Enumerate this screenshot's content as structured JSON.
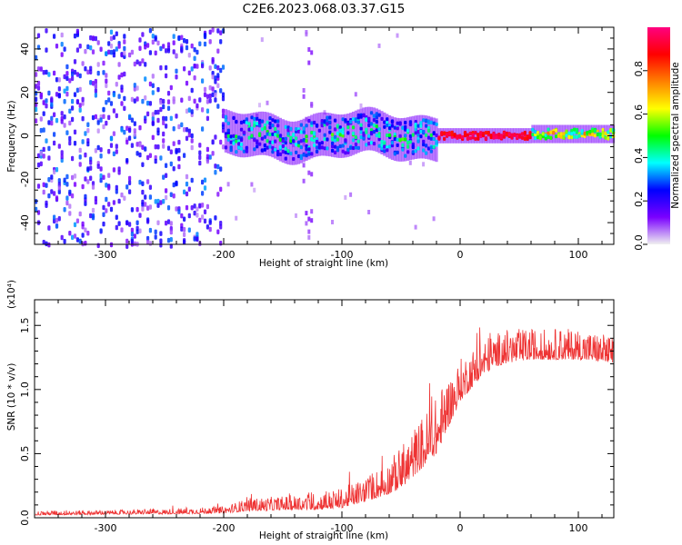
{
  "title": "C2E6.2023.068.03.37.G15",
  "chart_data": [
    {
      "type": "heatmap",
      "xlabel": "Height of straight line (km)",
      "ylabel": "Frequency (Hz)",
      "xlim": [
        -360,
        130
      ],
      "ylim": [
        -50,
        50
      ],
      "xticks": [
        -300,
        -200,
        -100,
        0,
        100
      ],
      "yticks": [
        -40,
        -20,
        0,
        20,
        40
      ],
      "colorbar": {
        "label": "Normalized spectral amplitude",
        "range": [
          0,
          1
        ],
        "ticks": [
          "0.0",
          "0.2",
          "0.4",
          "0.6",
          "0.8"
        ],
        "tick_values": [
          0.0,
          0.2,
          0.4,
          0.6,
          0.8
        ],
        "colors": [
          "#f0f0f0",
          "#7a00ff",
          "#0000ff",
          "#00ffff",
          "#00ff00",
          "#ffff00",
          "#ff8000",
          "#ff0000",
          "#ff0080"
        ]
      },
      "features": [
        {
          "x_range": [
            -360,
            -200
          ],
          "freq_range": [
            -50,
            50
          ],
          "amplitude": "low (0.05-0.3)",
          "pattern": "dense broadband speckle"
        },
        {
          "x_range": [
            -200,
            -135
          ],
          "freq_range": [
            -50,
            50
          ],
          "amplitude": "very low (<0.1)",
          "pattern": "sparse faint speckle"
        },
        {
          "x_range": [
            -135,
            -125
          ],
          "freq_range": [
            -50,
            50
          ],
          "amplitude": "low",
          "pattern": "vertical speckle streak"
        },
        {
          "x_range": [
            -200,
            -20
          ],
          "freq_center": 0,
          "freq_halfwidth": 8,
          "amplitude": "0.2-0.6",
          "pattern": "wandering narrow band"
        },
        {
          "x_range": [
            -20,
            60
          ],
          "freq_center": 0,
          "freq_halfwidth": 1,
          "amplitude": "0.9-1.0",
          "pattern": "strong narrow line"
        },
        {
          "x_range": [
            60,
            130
          ],
          "freq_center": 1,
          "freq_halfwidth": 2,
          "amplitude": "0.4-0.8",
          "pattern": "narrow band"
        }
      ]
    },
    {
      "type": "line",
      "xlabel": "Height of straight line (km)",
      "ylabel": "SNR (10 * v/v)",
      "multiplier": "(x10⁴)",
      "xlim": [
        -360,
        130
      ],
      "ylim": [
        0,
        17000
      ],
      "xticks": [
        -300,
        -200,
        -100,
        0,
        100
      ],
      "yticks": [
        0,
        5000,
        10000,
        15000
      ],
      "ytick_labels": [
        "0.0",
        "0.5",
        "1.0",
        "1.5"
      ],
      "color": "#ee3333",
      "series": [
        {
          "x": [
            -360,
            -300,
            -250,
            -200,
            -180,
            -150,
            -120,
            -100,
            -80,
            -60,
            -50,
            -40,
            -30,
            -20,
            -15,
            -10,
            -5,
            0,
            10,
            20,
            30,
            40,
            60,
            80,
            100,
            120,
            130
          ],
          "y": [
            300,
            350,
            400,
            500,
            800,
            900,
            1000,
            1200,
            1800,
            2600,
            3200,
            4200,
            5200,
            6200,
            7200,
            8200,
            9000,
            10000,
            11000,
            12000,
            12500,
            12800,
            13000,
            13000,
            13000,
            12800,
            12600
          ],
          "noise": [
            150,
            150,
            180,
            250,
            450,
            500,
            600,
            700,
            900,
            1200,
            1500,
            1700,
            1900,
            2000,
            2000,
            1800,
            1600,
            1500,
            1400,
            1300,
            1200,
            1200,
            1100,
            1100,
            1100,
            1000,
            1000
          ]
        }
      ]
    }
  ]
}
